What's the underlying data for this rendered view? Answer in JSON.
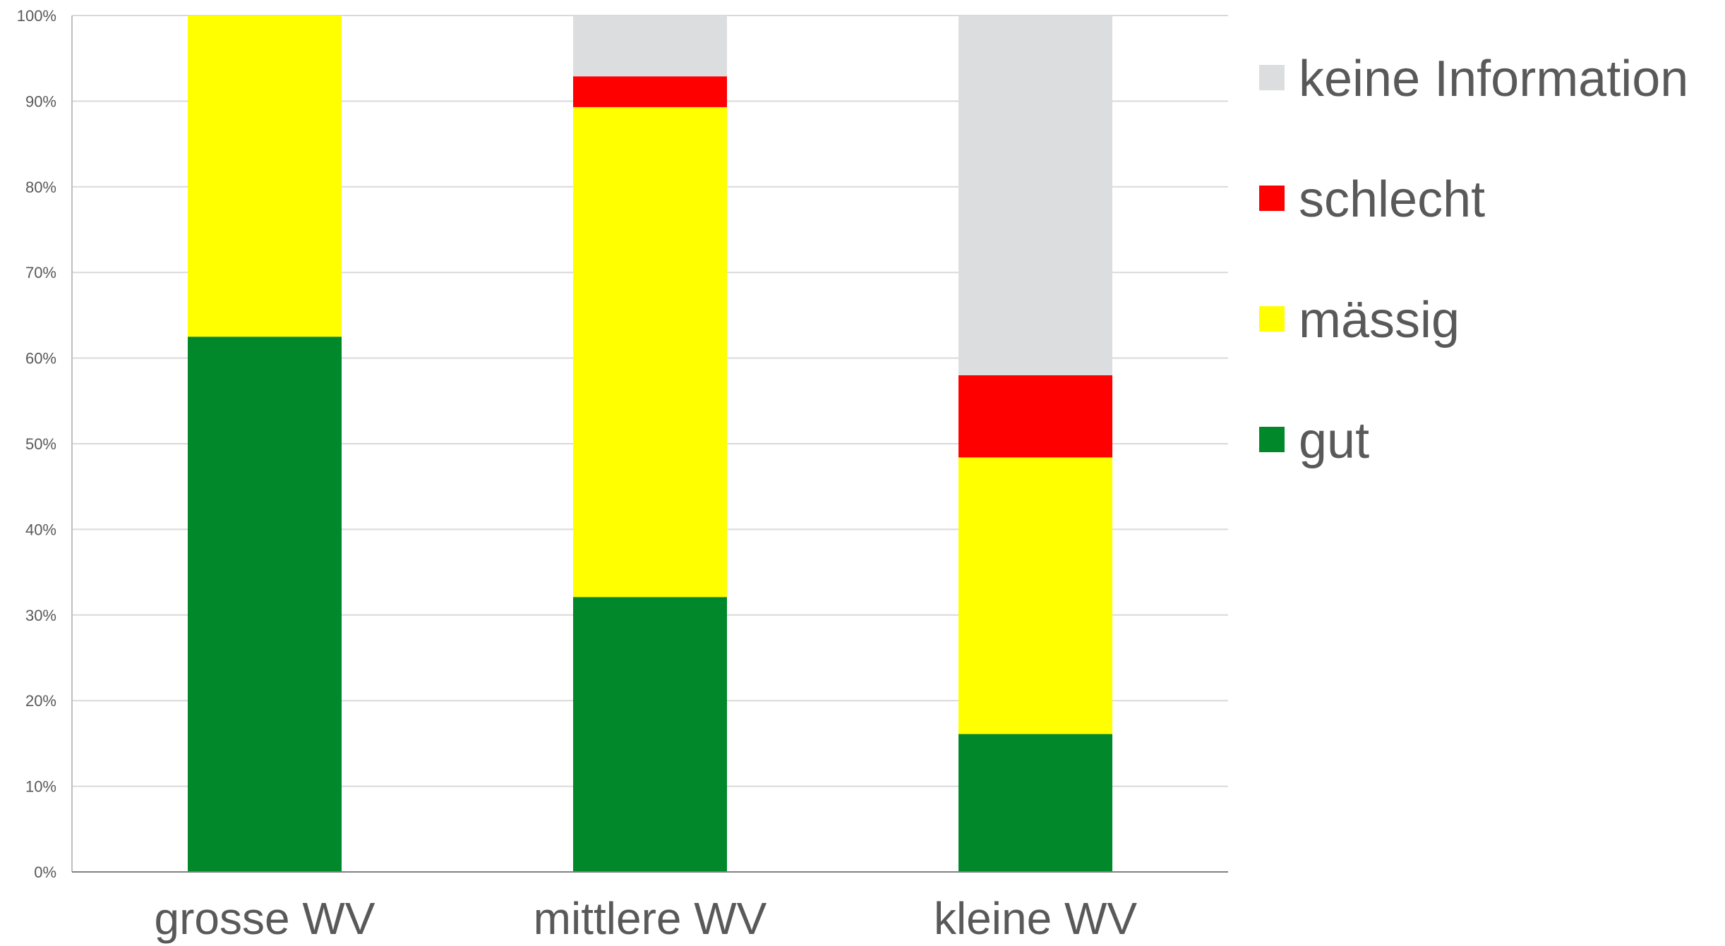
{
  "chart_data": {
    "type": "bar",
    "stacked": true,
    "percent": true,
    "categories": [
      "grosse WV",
      "mittlere WV",
      "kleine WV"
    ],
    "series": [
      {
        "name": "gut",
        "color": "#00882B",
        "values": [
          62.5,
          32.1,
          16.1
        ]
      },
      {
        "name": "mässig",
        "color": "#FFFF00",
        "values": [
          37.5,
          57.2,
          32.3
        ]
      },
      {
        "name": "schlecht",
        "color": "#FF0000",
        "values": [
          0,
          3.6,
          9.6
        ]
      },
      {
        "name": "keine Information",
        "color": "#DCDDDF",
        "values": [
          0,
          7.1,
          42.0
        ]
      }
    ],
    "ylim": [
      0,
      100
    ],
    "yticks": [
      "0%",
      "10%",
      "20%",
      "30%",
      "40%",
      "50%",
      "60%",
      "70%",
      "80%",
      "90%",
      "100%"
    ],
    "grid": true,
    "legend_position": "right",
    "legend_order": [
      "keine Information",
      "schlecht",
      "mässig",
      "gut"
    ]
  }
}
